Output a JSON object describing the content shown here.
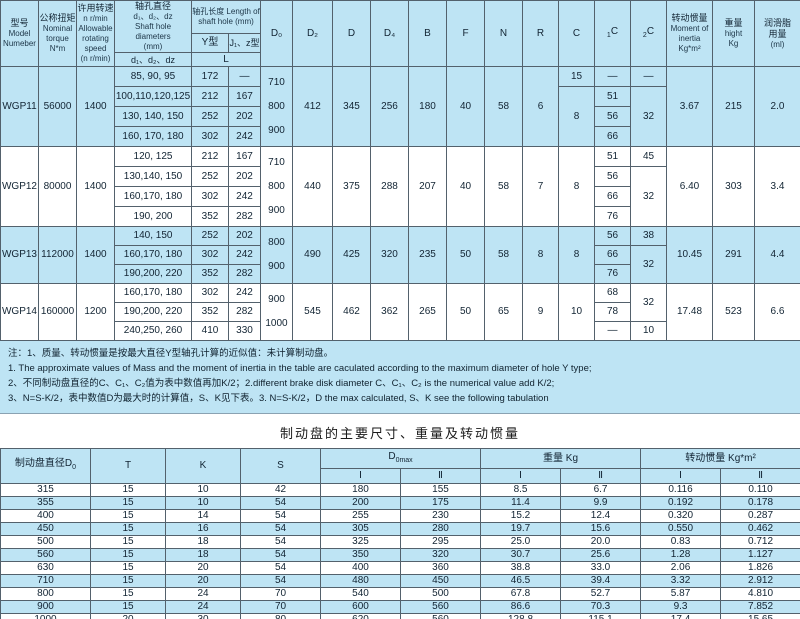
{
  "top_table": {
    "header": {
      "model": [
        "型号",
        "Model",
        "Numeber"
      ],
      "torque": [
        "公称扭矩",
        "Nominal",
        "torque",
        "N*m"
      ],
      "speed": [
        "许用转速",
        "n r/min",
        "Allowable",
        "rotating",
        "speed",
        "(n r/min)"
      ],
      "dia": [
        "轴孔直径",
        "d₁、d₂、dz",
        "Shaft hole",
        "diameters",
        "(mm)"
      ],
      "dia_leaf": "d₁、d₂、dz",
      "len_line1": "轴孔长度 Length of",
      "len_line2": "shaft hole (mm)",
      "len_y": "Y型",
      "len_jz": "J₁、z型",
      "len_leaf": "L",
      "d0": "D₀",
      "d2": "D₂",
      "d": "D",
      "d4": "D₄",
      "b": "B",
      "f": "F",
      "n": "N",
      "r": "R",
      "c": "C",
      "c1_sub": "1",
      "c1_main": "C",
      "c2_sub": "2",
      "c2_main": "C",
      "inertia": [
        "转动惯量",
        "Moment of",
        "inertia",
        "Kg*m²"
      ],
      "weight": [
        "重量",
        "hight",
        "Kg"
      ],
      "grease": [
        "润滑脂",
        "用量",
        "(ml)"
      ]
    },
    "groups": [
      {
        "model": "WGP11",
        "torque": "56000",
        "speed": "1400",
        "shaded": true,
        "rows": [
          [
            "85, 90, 95",
            "172",
            "—"
          ],
          [
            "100,110,120,125",
            "212",
            "167"
          ],
          [
            "130, 140, 150",
            "252",
            "202"
          ],
          [
            "160, 170, 180",
            "302",
            "242"
          ]
        ],
        "d0": [
          "710",
          "800",
          "900"
        ],
        "d2": "412",
        "d": "345",
        "d4": "256",
        "b": "180",
        "f": "40",
        "n": "58",
        "r": "6",
        "c": [
          [
            "15",
            1
          ],
          [
            "8",
            3
          ]
        ],
        "c1": [
          [
            "—",
            1
          ],
          [
            "51",
            1
          ],
          [
            "56",
            1
          ],
          [
            "66",
            1
          ]
        ],
        "c2": [
          [
            "—",
            1
          ],
          [
            "32",
            3
          ]
        ],
        "inertia": "3.67",
        "weight": "215",
        "grease": "2.0"
      },
      {
        "model": "WGP12",
        "torque": "80000",
        "speed": "1400",
        "shaded": false,
        "rows": [
          [
            "120, 125",
            "212",
            "167"
          ],
          [
            "130,140, 150",
            "252",
            "202"
          ],
          [
            "160,170, 180",
            "302",
            "242"
          ],
          [
            "190, 200",
            "352",
            "282"
          ]
        ],
        "d0": [
          "710",
          "800",
          "900"
        ],
        "d2": "440",
        "d": "375",
        "d4": "288",
        "b": "207",
        "f": "40",
        "n": "58",
        "r": "7",
        "c": [
          [
            "8",
            4
          ]
        ],
        "c1": [
          [
            "51",
            1
          ],
          [
            "56",
            1
          ],
          [
            "66",
            1
          ],
          [
            "76",
            1
          ]
        ],
        "c2": [
          [
            "45",
            1
          ],
          [
            "32",
            3
          ]
        ],
        "inertia": "6.40",
        "weight": "303",
        "grease": "3.4"
      },
      {
        "model": "WGP13",
        "torque": "112000",
        "speed": "1400",
        "shaded": true,
        "rows": [
          [
            "140, 150",
            "252",
            "202"
          ],
          [
            "160,170, 180",
            "302",
            "242"
          ],
          [
            "190,200, 220",
            "352",
            "282"
          ]
        ],
        "d0": [
          "800",
          "900"
        ],
        "d2": "490",
        "d": "425",
        "d4": "320",
        "b": "235",
        "f": "50",
        "n": "58",
        "r": "8",
        "c": [
          [
            "8",
            3
          ]
        ],
        "c1": [
          [
            "56",
            1
          ],
          [
            "66",
            1
          ],
          [
            "76",
            1
          ]
        ],
        "c2": [
          [
            "38",
            1
          ],
          [
            "32",
            2
          ]
        ],
        "inertia": "10.45",
        "weight": "291",
        "grease": "4.4"
      },
      {
        "model": "WGP14",
        "torque": "160000",
        "speed": "1200",
        "shaded": false,
        "rows": [
          [
            "160,170, 180",
            "302",
            "242"
          ],
          [
            "190,200, 220",
            "352",
            "282"
          ],
          [
            "240,250, 260",
            "410",
            "330"
          ]
        ],
        "d0": [
          "900",
          "1000"
        ],
        "d2": "545",
        "d": "462",
        "d4": "362",
        "b": "265",
        "f": "50",
        "n": "65",
        "r": "9",
        "c": [
          [
            "10",
            3
          ]
        ],
        "c1": [
          [
            "68",
            1
          ],
          [
            "78",
            1
          ],
          [
            "—",
            1
          ]
        ],
        "c2": [
          [
            "32",
            2
          ],
          [
            "10",
            1
          ]
        ],
        "inertia": "17.48",
        "weight": "523",
        "grease": "6.6"
      }
    ]
  },
  "notes": {
    "lines": [
      "注：1、质量、转动惯量是按最大直径Y型轴孔计算的近似值：未计算制动盘。",
      "1. The approximate values of Mass and the moment of inertia in the table are caculated according to the maximum diameter of hole Y type;",
      "2、不同制动盘直径的C、C₁、C₂值为表中数值再加K/2；2.different brake disk diameter C、C₁、C₂ is the numerical value add K/2;",
      "3、N=S-K/2，表中数值D为最大时的计算值，S、K见下表。3. N=S-K/2，D the max calculated, S、K see the following tabulation"
    ]
  },
  "bottom": {
    "title": "制动盘的主要尺寸、重量及转动惯量",
    "header": {
      "d0_main": "制动盘直径D",
      "d0_sub": "0",
      "t": "T",
      "k": "K",
      "s": "S",
      "dmax_main": "D",
      "dmax_sub": "0max",
      "weight_group": "重量 Kg",
      "inertia_group": "转动惯量 Kg*m²",
      "i": "Ⅰ",
      "ii": "Ⅱ"
    },
    "rows": [
      [
        "315",
        "15",
        "10",
        "42",
        "180",
        "155",
        "8.5",
        "6.7",
        "0.116",
        "0.110"
      ],
      [
        "355",
        "15",
        "10",
        "54",
        "200",
        "175",
        "11.4",
        "9.9",
        "0.192",
        "0.178"
      ],
      [
        "400",
        "15",
        "14",
        "54",
        "255",
        "230",
        "15.2",
        "12.4",
        "0.320",
        "0.287"
      ],
      [
        "450",
        "15",
        "16",
        "54",
        "305",
        "280",
        "19.7",
        "15.6",
        "0.550",
        "0.462"
      ],
      [
        "500",
        "15",
        "18",
        "54",
        "325",
        "295",
        "25.0",
        "20.0",
        "0.83",
        "0.712"
      ],
      [
        "560",
        "15",
        "18",
        "54",
        "350",
        "320",
        "30.7",
        "25.6",
        "1.28",
        "1.127"
      ],
      [
        "630",
        "15",
        "20",
        "54",
        "400",
        "360",
        "38.8",
        "33.0",
        "2.06",
        "1.826"
      ],
      [
        "710",
        "15",
        "20",
        "54",
        "480",
        "450",
        "46.5",
        "39.4",
        "3.32",
        "2.912"
      ],
      [
        "800",
        "15",
        "24",
        "70",
        "540",
        "500",
        "67.8",
        "52.7",
        "5.87",
        "4.810"
      ],
      [
        "900",
        "15",
        "24",
        "70",
        "600",
        "560",
        "86.6",
        "70.3",
        "9.3",
        "7.852"
      ],
      [
        "1000",
        "20",
        "30",
        "80",
        "620",
        "560",
        "128.8",
        "115.1",
        "17.4",
        "15.65"
      ]
    ],
    "colors": {
      "stripe_blue": "#bee4f4",
      "row_white": "#ffffff",
      "border": "#53616c"
    }
  }
}
